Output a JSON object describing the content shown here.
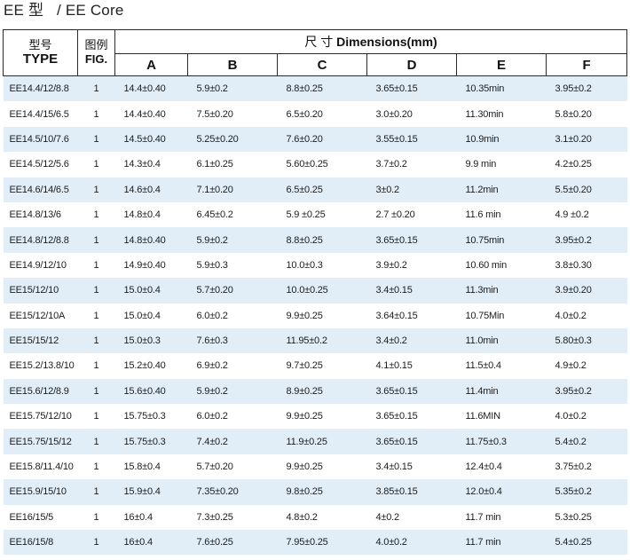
{
  "title": {
    "cn": "EE 型",
    "en": "/ EE Core"
  },
  "header": {
    "type_cn": "型号",
    "type_en": "TYPE",
    "fig_cn": "图例",
    "fig_en": "FIG.",
    "dims_cn": "尺 寸",
    "dims_en": "Dimensions(mm)",
    "cols": [
      "A",
      "B",
      "C",
      "D",
      "E",
      "F"
    ]
  },
  "rows": [
    [
      "EE14.4/12/8.8",
      "1",
      "14.4±0.40",
      "5.9±0.2",
      "8.8±0.25",
      "3.65±0.15",
      "10.35min",
      "3.95±0.2"
    ],
    [
      "EE14.4/15/6.5",
      "1",
      "14.4±0.40",
      "7.5±0.20",
      "6.5±0.20",
      "3.0±0.20",
      "11.30min",
      "5.8±0.20"
    ],
    [
      "EE14.5/10/7.6",
      "1",
      "14.5±0.40",
      "5.25±0.20",
      "7.6±0.20",
      "3.55±0.15",
      "10.9min",
      "3.1±0.20"
    ],
    [
      "EE14.5/12/5.6",
      "1",
      "14.3±0.4",
      "6.1±0.25",
      "5.60±0.25",
      "3.7±0.2",
      "9.9 min",
      "4.2±0.25"
    ],
    [
      "EE14.6/14/6.5",
      "1",
      "14.6±0.4",
      "7.1±0.20",
      "6.5±0.25",
      "3±0.2",
      "11.2min",
      "5.5±0.20"
    ],
    [
      "EE14.8/13/6",
      "1",
      "14.8±0.4",
      "6.45±0.2",
      "5.9 ±0.25",
      "2.7 ±0.20",
      "11.6 min",
      "4.9 ±0.2"
    ],
    [
      "EE14.8/12/8.8",
      "1",
      "14.8±0.40",
      "5.9±0.2",
      "8.8±0.25",
      "3.65±0.15",
      "10.75min",
      "3.95±0.2"
    ],
    [
      "EE14.9/12/10",
      "1",
      "14.9±0.40",
      "5.9±0.3",
      "10.0±0.3",
      "3.9±0.2",
      "10.60 min",
      "3.8±0.30"
    ],
    [
      "EE15/12/10",
      "1",
      "15.0±0.4",
      "5.7±0.20",
      "10.0±0.25",
      "3.4±0.15",
      "11.3min",
      "3.9±0.20"
    ],
    [
      "EE15/12/10A",
      "1",
      "15.0±0.4",
      "6.0±0.2",
      "9.9±0.25",
      "3.64±0.15",
      "10.75Min",
      "4.0±0.2"
    ],
    [
      "EE15/15/12",
      "1",
      "15.0±0.3",
      "7.6±0.3",
      "11.95±0.2",
      "3.4±0.2",
      "11.0min",
      "5.80±0.3"
    ],
    [
      "EE15.2/13.8/10",
      "1",
      "15.2±0.40",
      "6.9±0.2",
      "9.7±0.25",
      "4.1±0.15",
      "11.5±0.4",
      "4.9±0.2"
    ],
    [
      "EE15.6/12/8.9",
      "1",
      "15.6±0.40",
      "5.9±0.2",
      "8.9±0.25",
      "3.65±0.15",
      "11.4min",
      "3.95±0.2"
    ],
    [
      "EE15.75/12/10",
      "1",
      "15.75±0.3",
      "6.0±0.2",
      "9.9±0.25",
      "3.65±0.15",
      "11.6MIN",
      "4.0±0.2"
    ],
    [
      "EE15.75/15/12",
      "1",
      "15.75±0.3",
      "7.4±0.2",
      "11.9±0.25",
      "3.65±0.15",
      "11.75±0.3",
      "5.4±0.2"
    ],
    [
      "EE15.8/11.4/10",
      "1",
      "15.8±0.4",
      "5.7±0.20",
      "9.9±0.25",
      "3.4±0.15",
      "12.4±0.4",
      "3.75±0.2"
    ],
    [
      "EE15.9/15/10",
      "1",
      "15.9±0.4",
      "7.35±0.20",
      "9.8±0.25",
      "3.85±0.15",
      "12.0±0.4",
      "5.35±0.2"
    ],
    [
      "EE16/15/5",
      "1",
      "16±0.4",
      "7.3±0.25",
      "4.8±0.2",
      "4±0.2",
      "11.7  min",
      "5.3±0.25"
    ],
    [
      "EE16/15/8",
      "1",
      "16±0.4",
      "7.6±0.25",
      "7.95±0.25",
      "4.0±0.2",
      "11.7 min",
      "5.4±0.25"
    ]
  ]
}
